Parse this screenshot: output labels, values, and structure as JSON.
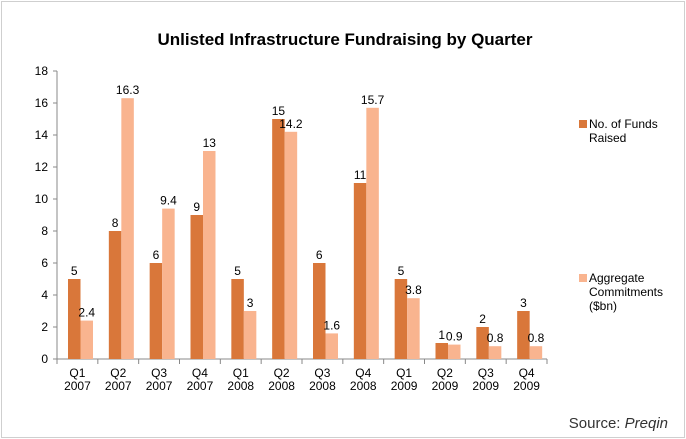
{
  "chart_data": {
    "type": "bar",
    "title": "Unlisted Infrastructure Fundraising by Quarter",
    "categories": [
      [
        "Q1",
        "2007"
      ],
      [
        "Q2",
        "2007"
      ],
      [
        "Q3",
        "2007"
      ],
      [
        "Q4",
        "2007"
      ],
      [
        "Q1",
        "2008"
      ],
      [
        "Q2",
        "2008"
      ],
      [
        "Q3",
        "2008"
      ],
      [
        "Q4",
        "2008"
      ],
      [
        "Q1",
        "2009"
      ],
      [
        "Q2",
        "2009"
      ],
      [
        "Q3",
        "2009"
      ],
      [
        "Q4",
        "2009"
      ]
    ],
    "series": [
      {
        "name": "No. of Funds Raised",
        "color": "#d9773a",
        "values": [
          5,
          8,
          6,
          9,
          5,
          15,
          6,
          11,
          5,
          1,
          2,
          3
        ]
      },
      {
        "name": "Aggregate Commitments ($bn)",
        "color": "#f9b48f",
        "values": [
          2.4,
          16.3,
          9.4,
          13,
          3,
          14.2,
          1.6,
          15.7,
          3.8,
          0.9,
          0.8,
          0.8
        ]
      }
    ],
    "ylim": [
      0,
      18
    ],
    "yticks": [
      0,
      2,
      4,
      6,
      8,
      10,
      12,
      14,
      16,
      18
    ],
    "grid": false,
    "legend": "right",
    "source": "Source:",
    "source_name": "Preqin"
  }
}
